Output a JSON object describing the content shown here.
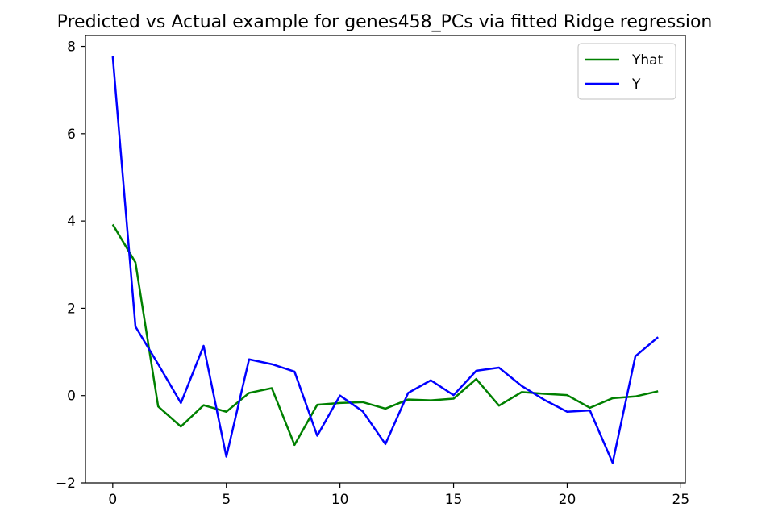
{
  "chart_data": {
    "type": "line",
    "title": "Predicted vs Actual example for genes458_PCs via fitted Ridge regression",
    "xlabel": "",
    "ylabel": "",
    "xlim": [
      -1.2,
      25.2
    ],
    "ylim": [
      -2,
      8.25
    ],
    "x_ticks": [
      0,
      5,
      10,
      15,
      20,
      25
    ],
    "y_ticks": [
      -2,
      0,
      2,
      4,
      6,
      8
    ],
    "x_tick_labels": [
      "0",
      "5",
      "10",
      "15",
      "20",
      "25"
    ],
    "y_tick_labels": [
      "−2",
      "0",
      "2",
      "4",
      "6",
      "8"
    ],
    "grid": false,
    "legend_position": "top-right",
    "x": [
      0,
      1,
      2,
      3,
      4,
      5,
      6,
      7,
      8,
      9,
      10,
      11,
      12,
      13,
      14,
      15,
      16,
      17,
      18,
      19,
      20,
      21,
      22,
      23,
      24
    ],
    "series": [
      {
        "name": "Yhat",
        "color": "#008000",
        "values": [
          3.92,
          3.05,
          -0.25,
          -0.71,
          -0.22,
          -0.37,
          0.06,
          0.17,
          -1.13,
          -0.21,
          -0.17,
          -0.15,
          -0.3,
          -0.09,
          -0.11,
          -0.07,
          0.38,
          -0.23,
          0.08,
          0.04,
          0.01,
          -0.28,
          -0.06,
          -0.02,
          0.1
        ]
      },
      {
        "name": "Y",
        "color": "#0000ff",
        "values": [
          7.77,
          1.58,
          0.72,
          -0.17,
          1.14,
          -1.4,
          0.83,
          0.72,
          0.55,
          -0.92,
          0.0,
          -0.36,
          -1.11,
          0.06,
          0.35,
          0.01,
          0.57,
          0.64,
          0.22,
          -0.1,
          -0.37,
          -0.34,
          -1.54,
          0.9,
          1.34
        ]
      }
    ]
  }
}
